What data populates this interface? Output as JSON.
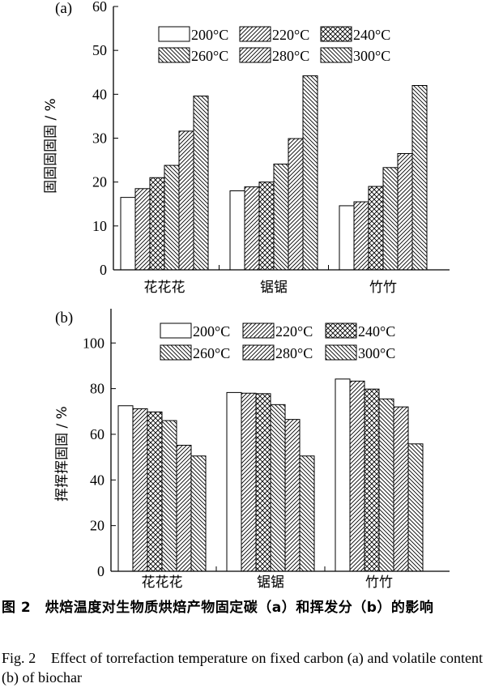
{
  "chart_data": [
    {
      "panel_label": "(a)",
      "type": "bar",
      "ylabel": "固固固固固 / %",
      "ylim": [
        0,
        60
      ],
      "yticks": [
        0,
        10,
        20,
        30,
        40,
        50,
        60
      ],
      "categories": [
        "花花花",
        "锯锯",
        "竹竹"
      ],
      "series": [
        {
          "name": "200°C",
          "pattern": "none",
          "values": [
            16.5,
            18.0,
            14.6
          ]
        },
        {
          "name": "220°C",
          "pattern": "diag-right",
          "values": [
            18.5,
            18.9,
            15.5
          ]
        },
        {
          "name": "240°C",
          "pattern": "crosshatch",
          "values": [
            21.0,
            20.0,
            19.0
          ]
        },
        {
          "name": "260°C",
          "pattern": "diag-left",
          "values": [
            23.8,
            24.1,
            23.3
          ]
        },
        {
          "name": "280°C",
          "pattern": "diag-right",
          "values": [
            31.6,
            29.9,
            26.5
          ]
        },
        {
          "name": "300°C",
          "pattern": "diag-left",
          "values": [
            39.6,
            44.2,
            42.0
          ]
        }
      ],
      "legend_position": "top-right"
    },
    {
      "panel_label": "(b)",
      "type": "bar",
      "ylabel": "挥挥挥固固 / %",
      "ylim": [
        0,
        115
      ],
      "yticks": [
        0,
        20,
        40,
        60,
        80,
        100
      ],
      "categories": [
        "花花花",
        "锯锯",
        "竹竹"
      ],
      "series": [
        {
          "name": "200°C",
          "pattern": "none",
          "values": [
            72.5,
            78.3,
            84.2
          ]
        },
        {
          "name": "220°C",
          "pattern": "diag-right",
          "values": [
            71.2,
            78.0,
            83.3
          ]
        },
        {
          "name": "240°C",
          "pattern": "crosshatch",
          "values": [
            69.8,
            77.8,
            79.8
          ]
        },
        {
          "name": "260°C",
          "pattern": "diag-left",
          "values": [
            66.0,
            73.0,
            75.5
          ]
        },
        {
          "name": "280°C",
          "pattern": "diag-right",
          "values": [
            55.2,
            66.5,
            72.0
          ]
        },
        {
          "name": "300°C",
          "pattern": "diag-left",
          "values": [
            50.5,
            50.5,
            55.8
          ]
        }
      ],
      "legend_position": "top-right"
    }
  ],
  "caption": {
    "cn": "图 2　烘焙温度对生物质烘焙产物固定碳（a）和挥发分（b）的影响",
    "en": "Fig. 2　Effect of torrefaction temperature on fixed carbon (a) and volatile content (b) of biochar"
  }
}
